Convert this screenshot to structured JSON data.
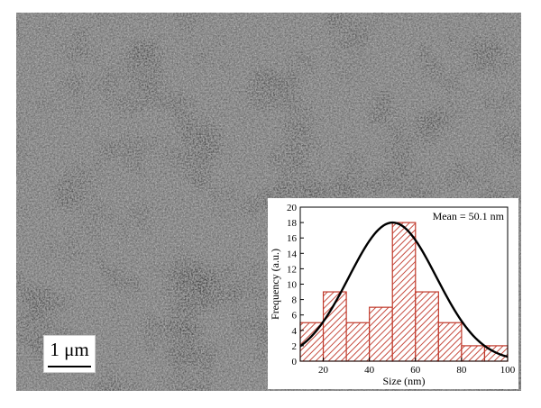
{
  "scale_bar": {
    "label": "1 μm"
  },
  "chart_data": {
    "type": "bar",
    "subtype": "histogram-with-normal-fit",
    "bin_edges": [
      10,
      20,
      30,
      40,
      50,
      60,
      70,
      80,
      90,
      100
    ],
    "categories": [
      "10-20",
      "20-30",
      "30-40",
      "40-50",
      "50-60",
      "60-70",
      "70-80",
      "80-90",
      "90-100"
    ],
    "values": [
      5,
      9,
      5,
      7,
      18,
      9,
      5,
      2,
      2
    ],
    "fit": {
      "type": "gaussian",
      "mean": 50.1,
      "sigma": 19,
      "peak": 18
    },
    "annotation": "Mean = 50.1 nm",
    "xlabel": "Size (nm)",
    "ylabel": "Frequency (a.u.)",
    "xlim": [
      10,
      100
    ],
    "ylim": [
      0,
      20
    ],
    "xticks": [
      20,
      40,
      60,
      80,
      100
    ],
    "yticks": [
      0,
      2,
      4,
      6,
      8,
      10,
      12,
      14,
      16,
      18,
      20
    ],
    "bar_color": "#c0392b",
    "fit_color": "#000000",
    "grid": false,
    "legend": "none"
  }
}
